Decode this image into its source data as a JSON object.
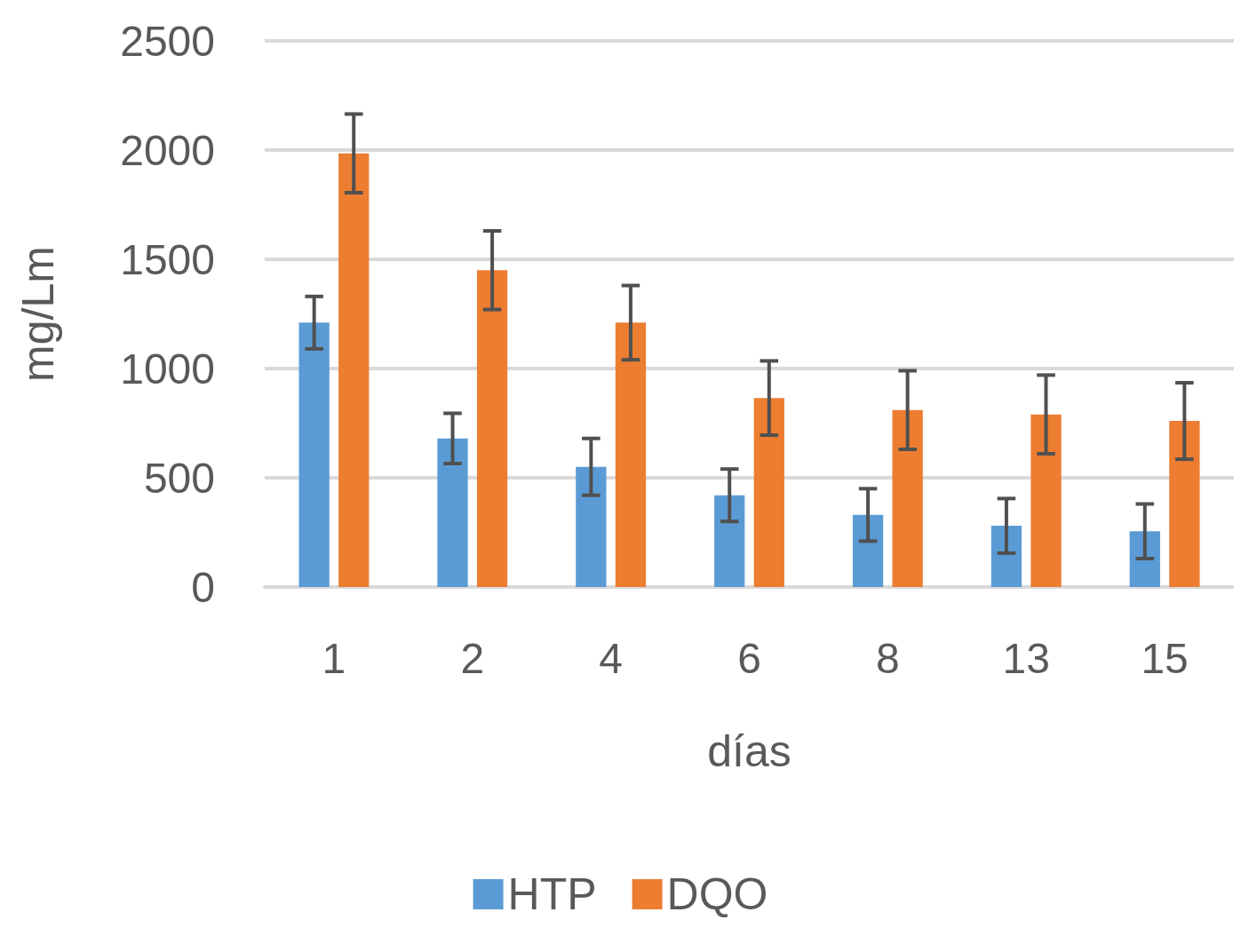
{
  "chart_data": {
    "type": "bar",
    "xlabel": "días",
    "ylabel": "mg/Lm",
    "categories": [
      "1",
      "2",
      "4",
      "6",
      "8",
      "13",
      "15"
    ],
    "series": [
      {
        "name": "HTP",
        "color": "#5b9bd5",
        "values": [
          1210,
          680,
          550,
          420,
          330,
          280,
          255
        ],
        "errors": [
          120,
          115,
          130,
          120,
          120,
          125,
          125
        ]
      },
      {
        "name": "DQO",
        "color": "#ed7d31",
        "values": [
          1985,
          1450,
          1210,
          865,
          810,
          790,
          760
        ],
        "errors": [
          180,
          180,
          170,
          170,
          180,
          180,
          175
        ]
      }
    ],
    "ylim": [
      0,
      2500
    ],
    "yticks": [
      0,
      500,
      1000,
      1500,
      2000,
      2500
    ],
    "grid": "y",
    "legend": "bottom"
  }
}
